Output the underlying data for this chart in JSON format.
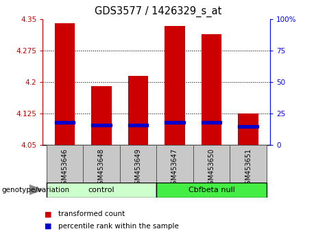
{
  "title": "GDS3577 / 1426329_s_at",
  "samples": [
    "GSM453646",
    "GSM453648",
    "GSM453649",
    "GSM453647",
    "GSM453650",
    "GSM453651"
  ],
  "transformed_counts": [
    4.34,
    4.19,
    4.215,
    4.335,
    4.315,
    4.125
  ],
  "percentile_ranks": [
    18,
    16,
    16,
    18,
    18,
    15
  ],
  "groups": [
    "control",
    "control",
    "control",
    "Cbfbeta null",
    "Cbfbeta null",
    "Cbfbeta null"
  ],
  "control_color": "#CCFFCC",
  "cbfbeta_color": "#44EE44",
  "bar_color": "#CC0000",
  "blue_color": "#0000CC",
  "ymin": 4.05,
  "ymax": 4.35,
  "yticks": [
    4.05,
    4.125,
    4.2,
    4.275,
    4.35
  ],
  "ytick_labels": [
    "4.05",
    "4.125",
    "4.2",
    "4.275",
    "4.35"
  ],
  "right_yticks": [
    0,
    25,
    50,
    75,
    100
  ],
  "right_ytick_labels": [
    "0",
    "25",
    "50",
    "75",
    "100%"
  ],
  "legend_items": [
    "transformed count",
    "percentile rank within the sample"
  ],
  "sample_bg": "#C8C8C8",
  "plot_bg": "#FFFFFF",
  "group_label": "genotype/variation"
}
